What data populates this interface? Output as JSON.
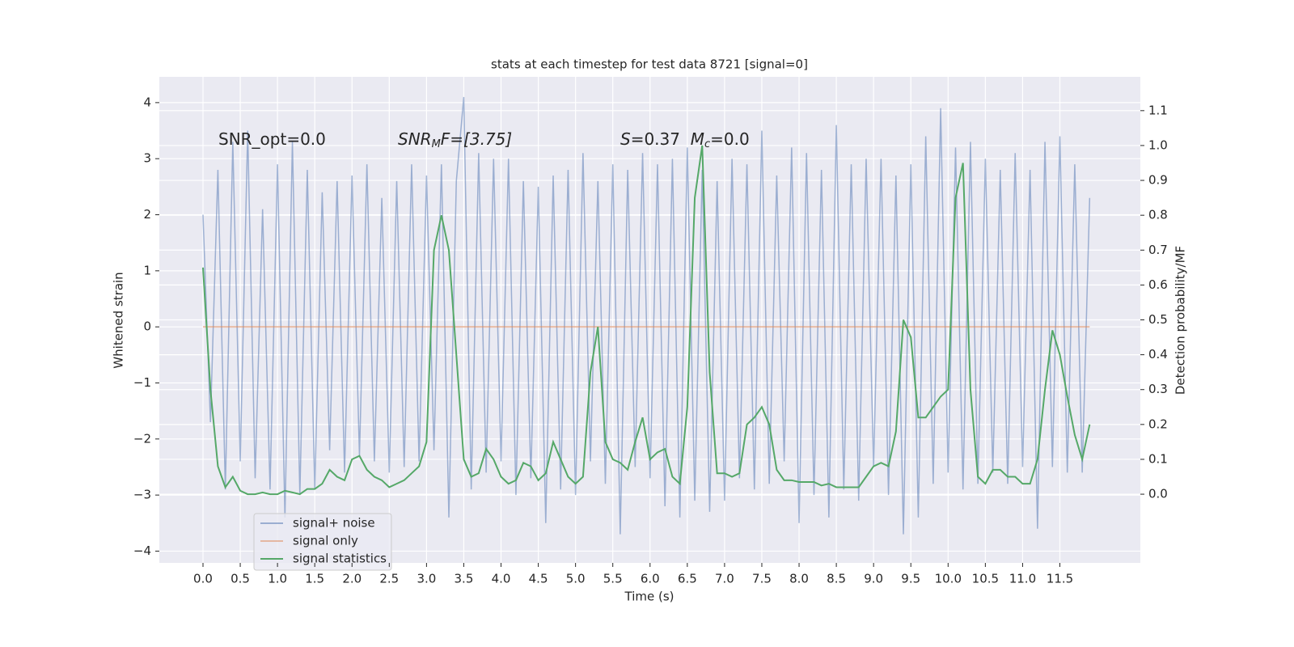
{
  "chart_data": {
    "type": "line",
    "title": "stats at each timestep for test data 8721 [signal=0]",
    "xlabel": "Time (s)",
    "ylabel": "Whitened strain",
    "y2label": "Detection probability/MF",
    "annotations": [
      [
        "SNR_opt=0.0"
      ],
      [
        "SNR",
        "M",
        "F=[3.75]"
      ],
      [
        "S",
        "=0.37  ",
        "M",
        "c",
        "=0.0"
      ]
    ],
    "x": [
      0.0,
      0.1,
      0.2,
      0.3,
      0.4,
      0.5,
      0.6,
      0.7,
      0.8,
      0.9,
      1.0,
      1.1,
      1.2,
      1.3,
      1.4,
      1.5,
      1.6,
      1.7,
      1.8,
      1.9,
      2.0,
      2.1,
      2.2,
      2.3,
      2.4,
      2.5,
      2.6,
      2.7,
      2.8,
      2.9,
      3.0,
      3.1,
      3.2,
      3.3,
      3.4,
      3.5,
      3.6,
      3.7,
      3.8,
      3.9,
      4.0,
      4.1,
      4.2,
      4.3,
      4.4,
      4.5,
      4.6,
      4.7,
      4.8,
      4.9,
      5.0,
      5.1,
      5.2,
      5.3,
      5.4,
      5.5,
      5.6,
      5.7,
      5.8,
      5.9,
      6.0,
      6.1,
      6.2,
      6.3,
      6.4,
      6.5,
      6.6,
      6.7,
      6.8,
      6.9,
      7.0,
      7.1,
      7.2,
      7.3,
      7.4,
      7.5,
      7.6,
      7.7,
      7.8,
      7.9,
      8.0,
      8.1,
      8.2,
      8.3,
      8.4,
      8.5,
      8.6,
      8.7,
      8.8,
      8.9,
      9.0,
      9.1,
      9.2,
      9.3,
      9.4,
      9.5,
      9.6,
      9.7,
      9.8,
      9.9,
      10.0,
      10.1,
      10.2,
      10.3,
      10.4,
      10.5,
      10.6,
      10.7,
      10.8,
      10.9,
      11.0,
      11.1,
      11.2,
      11.3,
      11.4,
      11.5,
      11.6,
      11.7,
      11.8,
      11.9
    ],
    "series": [
      {
        "name": "signal+ noise",
        "color": "#4c72b0",
        "values": [
          2.0,
          -1.7,
          2.8,
          -2.9,
          3.3,
          -2.4,
          3.5,
          -2.7,
          2.1,
          -2.9,
          2.9,
          -3.4,
          3.3,
          -3.0,
          2.8,
          -2.9,
          2.4,
          -2.2,
          2.6,
          -2.6,
          2.7,
          -2.3,
          2.9,
          -2.4,
          2.3,
          -2.6,
          2.6,
          -2.5,
          2.9,
          -2.4,
          2.7,
          -2.2,
          2.9,
          -3.4,
          2.6,
          4.1,
          -2.9,
          3.1,
          -2.6,
          3.0,
          -2.4,
          3.0,
          -3.0,
          2.6,
          -2.7,
          2.5,
          -3.5,
          2.7,
          -2.9,
          2.8,
          -3.0,
          3.1,
          -2.4,
          2.6,
          -2.8,
          2.9,
          -3.7,
          2.8,
          -2.5,
          3.1,
          -2.7,
          2.9,
          -3.2,
          3.0,
          -3.4,
          3.2,
          -3.1,
          2.8,
          -3.3,
          2.6,
          -3.1,
          3.0,
          -2.7,
          2.9,
          -2.9,
          3.5,
          -2.8,
          2.7,
          -2.4,
          3.2,
          -3.5,
          3.1,
          -3.0,
          2.8,
          -3.4,
          3.6,
          -2.9,
          2.9,
          -3.1,
          3.0,
          -2.5,
          3.0,
          -3.0,
          2.7,
          -3.7,
          2.9,
          -3.4,
          3.4,
          -2.8,
          3.9,
          -2.6,
          3.2,
          -2.9,
          3.3,
          -2.8,
          3.0,
          -2.6,
          2.8,
          -2.8,
          3.1,
          -2.5,
          2.8,
          -3.6,
          3.3,
          -2.5,
          3.4,
          -2.6,
          2.9,
          -2.6,
          2.3
        ]
      },
      {
        "name": "signal only",
        "color": "#dd8452",
        "values": [
          0,
          0,
          0,
          0,
          0,
          0,
          0,
          0,
          0,
          0,
          0,
          0,
          0,
          0,
          0,
          0,
          0,
          0,
          0,
          0,
          0,
          0,
          0,
          0,
          0,
          0,
          0,
          0,
          0,
          0,
          0,
          0,
          0,
          0,
          0,
          0,
          0,
          0,
          0,
          0,
          0,
          0,
          0,
          0,
          0,
          0,
          0,
          0,
          0,
          0,
          0,
          0,
          0,
          0,
          0,
          0,
          0,
          0,
          0,
          0,
          0,
          0,
          0,
          0,
          0,
          0,
          0,
          0,
          0,
          0,
          0,
          0,
          0,
          0,
          0,
          0,
          0,
          0,
          0,
          0,
          0,
          0,
          0,
          0,
          0,
          0,
          0,
          0,
          0,
          0,
          0,
          0,
          0,
          0,
          0,
          0,
          0,
          0,
          0,
          0,
          0,
          0,
          0,
          0,
          0,
          0,
          0,
          0,
          0,
          0,
          0,
          0,
          0,
          0,
          0,
          0,
          0,
          0,
          0,
          0
        ]
      },
      {
        "name": "signal statistics",
        "color": "#55a868",
        "axis": "y2",
        "values": [
          0.65,
          0.3,
          0.08,
          0.02,
          0.05,
          0.01,
          0.0,
          0.0,
          0.005,
          0.0,
          0.0,
          0.01,
          0.005,
          0.0,
          0.015,
          0.015,
          0.03,
          0.07,
          0.05,
          0.04,
          0.1,
          0.11,
          0.07,
          0.05,
          0.04,
          0.02,
          0.03,
          0.04,
          0.06,
          0.08,
          0.15,
          0.7,
          0.8,
          0.7,
          0.4,
          0.1,
          0.05,
          0.06,
          0.13,
          0.1,
          0.05,
          0.03,
          0.04,
          0.09,
          0.08,
          0.04,
          0.06,
          0.15,
          0.1,
          0.05,
          0.03,
          0.05,
          0.35,
          0.48,
          0.15,
          0.1,
          0.09,
          0.07,
          0.15,
          0.22,
          0.1,
          0.12,
          0.13,
          0.05,
          0.03,
          0.25,
          0.85,
          1.0,
          0.35,
          0.06,
          0.06,
          0.05,
          0.06,
          0.2,
          0.22,
          0.25,
          0.2,
          0.07,
          0.04,
          0.04,
          0.035,
          0.035,
          0.035,
          0.025,
          0.03,
          0.02,
          0.02,
          0.02,
          0.02,
          0.05,
          0.08,
          0.09,
          0.08,
          0.18,
          0.5,
          0.45,
          0.22,
          0.22,
          0.25,
          0.28,
          0.3,
          0.85,
          0.95,
          0.3,
          0.05,
          0.03,
          0.07,
          0.07,
          0.05,
          0.05,
          0.03,
          0.03,
          0.1,
          0.3,
          0.47,
          0.4,
          0.28,
          0.17,
          0.1,
          0.2
        ]
      }
    ],
    "xlim": [
      -0.586,
      12.58
    ],
    "ylim": [
      -4.21,
      4.46
    ],
    "y2lim": [
      -0.197,
      1.197
    ],
    "xticks": [
      {
        "value": 0,
        "label": "0.0"
      },
      0.5,
      {
        "value": 1,
        "label": "1.0"
      },
      1.5,
      {
        "value": 2,
        "label": "2.0"
      },
      2.5,
      {
        "value": 3,
        "label": "3.0"
      },
      3.5,
      {
        "value": 4,
        "label": "4.0"
      },
      4.5,
      {
        "value": 5,
        "label": "5.0"
      },
      5.5,
      {
        "value": 6,
        "label": "6.0"
      },
      6.5,
      {
        "value": 7,
        "label": "7.0"
      },
      7.5,
      {
        "value": 8,
        "label": "8.0"
      },
      8.5,
      {
        "value": 9,
        "label": "9.0"
      },
      9.5,
      {
        "value": 10,
        "label": "10.0"
      },
      10.5,
      {
        "value": 11,
        "label": "11.0"
      },
      11.5
    ],
    "yticks": [
      {
        "value": -4,
        "label": "−4"
      },
      {
        "value": -3,
        "label": "−3"
      },
      {
        "value": -2,
        "label": "−2"
      },
      {
        "value": -1,
        "label": "−1"
      },
      0,
      1,
      2,
      3,
      4
    ],
    "y2ticks": [
      {
        "value": 0,
        "label": "0.0"
      },
      0.1,
      0.2,
      0.3,
      0.4,
      0.5,
      0.6,
      0.7,
      0.8,
      0.9,
      {
        "value": 1,
        "label": "1.0"
      },
      1.1
    ],
    "grid": true,
    "legend": "lower left"
  }
}
